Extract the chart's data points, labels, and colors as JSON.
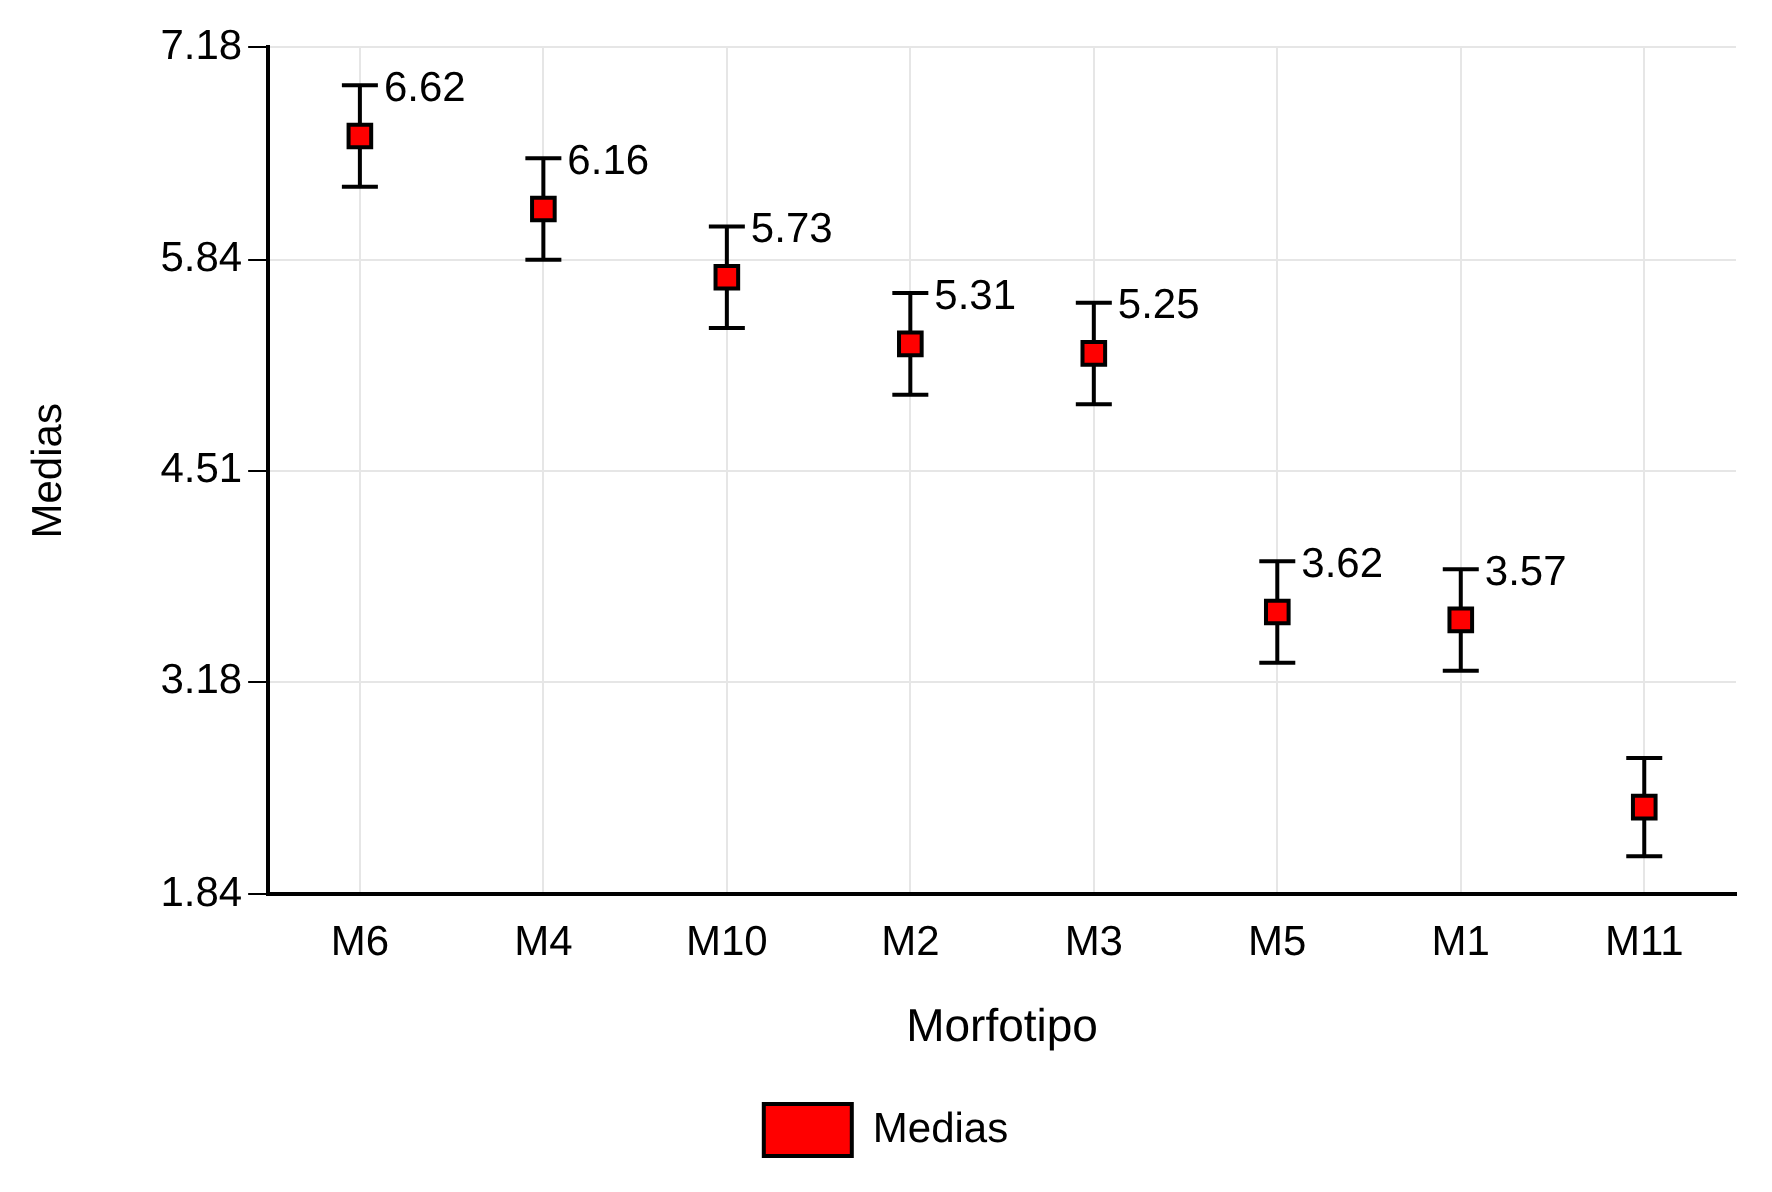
{
  "chart_data": {
    "type": "scatter",
    "xlabel": "Morfotipo",
    "ylabel": "Medias",
    "categories": [
      "M6",
      "M4",
      "M10",
      "M2",
      "M3",
      "M5",
      "M1",
      "M11"
    ],
    "series": [
      {
        "name": "Medias",
        "color": "#ff0000",
        "values": [
          6.62,
          6.16,
          5.73,
          5.31,
          5.25,
          3.62,
          3.57,
          2.39
        ],
        "errors": [
          0.32,
          0.32,
          0.32,
          0.32,
          0.32,
          0.32,
          0.32,
          0.31
        ],
        "value_labels": [
          "6.62",
          "6.16",
          "5.73",
          "5.31",
          "5.25",
          "3.62",
          "3.57",
          null
        ]
      }
    ],
    "ylim": [
      1.84,
      7.18
    ],
    "yticks": [
      1.84,
      3.18,
      4.51,
      5.84,
      7.18
    ],
    "grid": true,
    "legend": "bottom",
    "marker": "square"
  }
}
